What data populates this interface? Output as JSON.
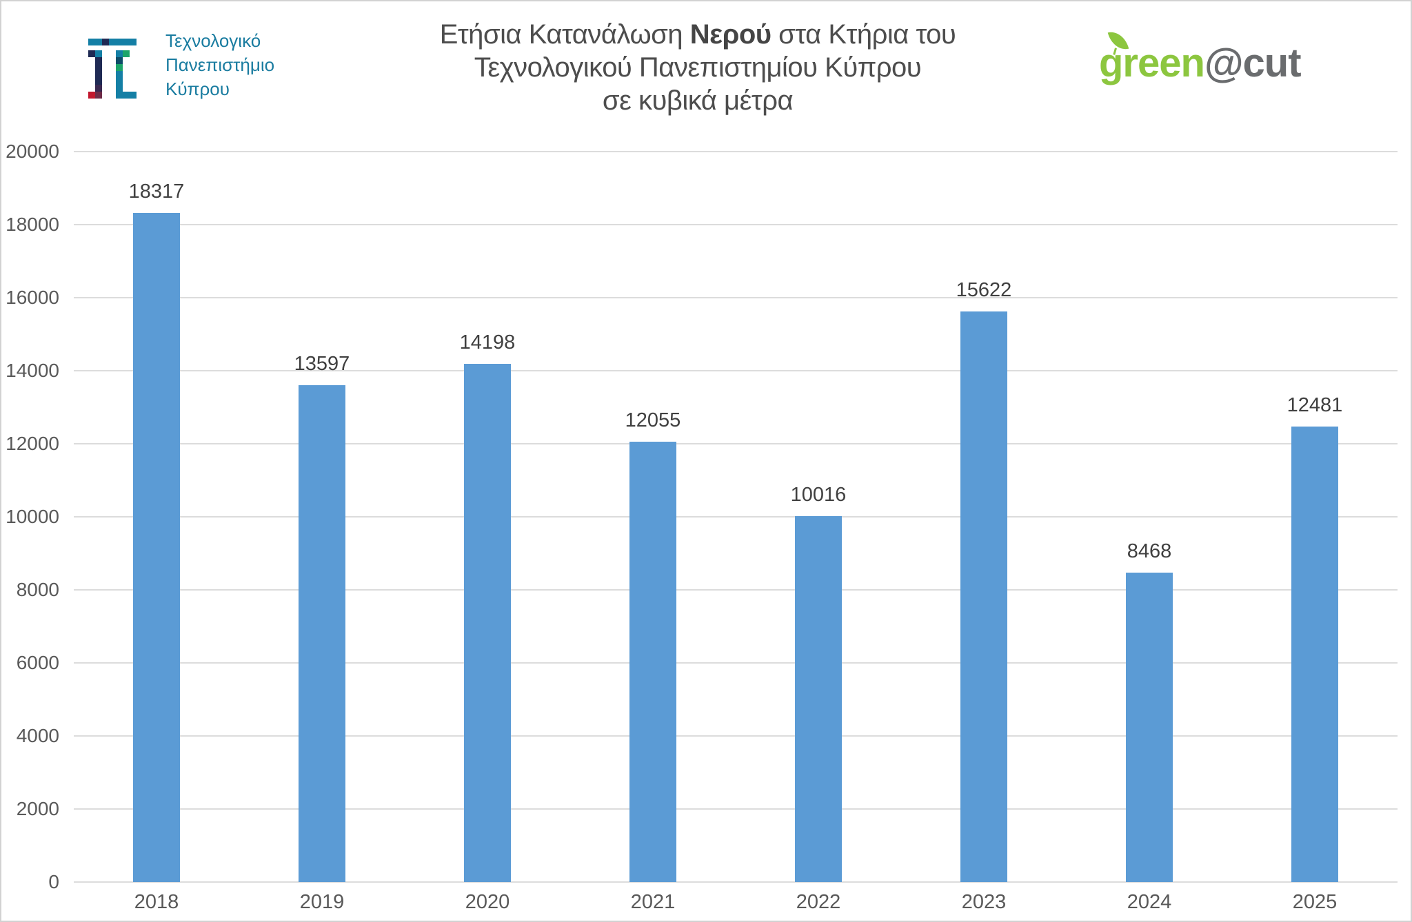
{
  "header": {
    "university_logo": {
      "text_lines": [
        "Τεχνολογικό",
        "Πανεπιστήμιο",
        "Κύπρου"
      ],
      "mosaic_rows": [
        "TTNTTTT",
        ".......",
        "NT..TG.",
        ".N..D..",
        ".N..G..",
        ".N..T..",
        ".N..T..",
        ".P..T..",
        "RM..TTT"
      ],
      "mosaic_colors": {
        "T": "#147fa5",
        "N": "#1f2a54",
        "G": "#1da46a",
        "D": "#0e4d68",
        "R": "#c2182e",
        "M": "#6e2b47",
        "P": "#3a2950"
      }
    },
    "title": {
      "line1_prefix": "Ετήσια Κατανάλωση ",
      "line1_bold": "Νερού",
      "line1_suffix": " στα Κτήρια του",
      "line2": "Τεχνολογικού Πανεπιστημίου Κύπρου",
      "line3": "σε κυβικά μέτρα"
    },
    "green_at_cut_logo": {
      "green_text": "green",
      "at_cut_text": "@cut",
      "green_color": "#8cc63f",
      "gray_color": "#6a6c6e"
    }
  },
  "chart_data": {
    "type": "bar",
    "title": "Ετήσια Κατανάλωση Νερού στα Κτήρια του Τεχνολογικού Πανεπιστημίου Κύπρου σε κυβικά μέτρα",
    "categories": [
      "2018",
      "2019",
      "2020",
      "2021",
      "2022",
      "2023",
      "2024",
      "2025"
    ],
    "values": [
      18317,
      13597,
      14198,
      12055,
      10016,
      15622,
      8468,
      12481
    ],
    "xlabel": "",
    "ylabel": "",
    "ylim": [
      0,
      20000
    ],
    "ytick_step": 2000,
    "yticks": [
      0,
      2000,
      4000,
      6000,
      8000,
      10000,
      12000,
      14000,
      16000,
      18000,
      20000
    ],
    "grid": true,
    "legend": false,
    "data_labels": true,
    "bar_color": "#5b9bd5",
    "gridline_color": "#dcdcdc",
    "axis_label_color": "#595959",
    "data_label_color": "#404040"
  }
}
